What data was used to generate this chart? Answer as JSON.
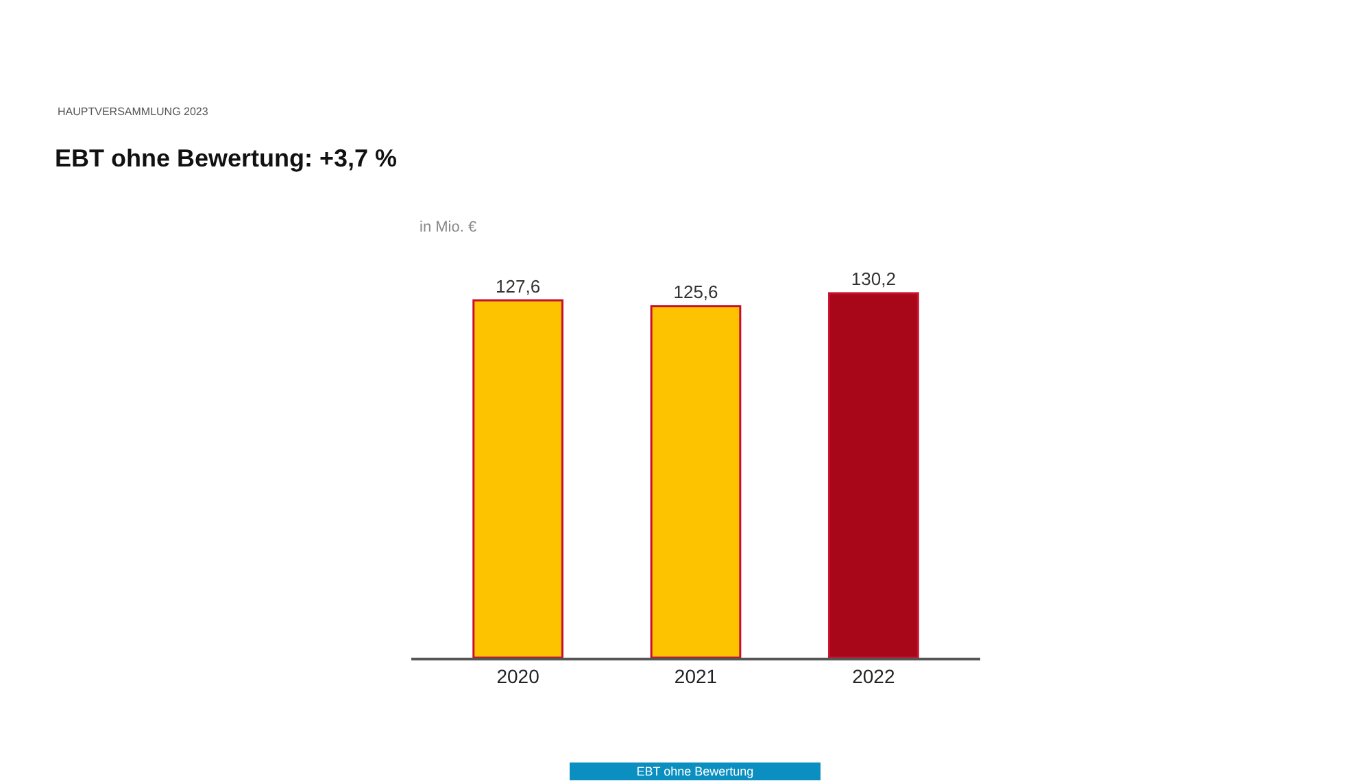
{
  "chart_data": {
    "type": "bar",
    "title": "EBT ohne Bewertung: +3,7 %",
    "ylabel": "in Mio. €",
    "annotations": [
      "HAUPTVERSAMMLUNG 2023",
      "EBT ohne Bewertung"
    ],
    "categories": [
      "2020",
      "2021",
      "2022"
    ],
    "values": [
      127.6,
      125.6,
      130.2
    ],
    "value_labels": [
      "127,6",
      "125,6",
      "130,2"
    ],
    "colors": [
      "#fdc300",
      "#fdc300",
      "#a8071a"
    ]
  }
}
